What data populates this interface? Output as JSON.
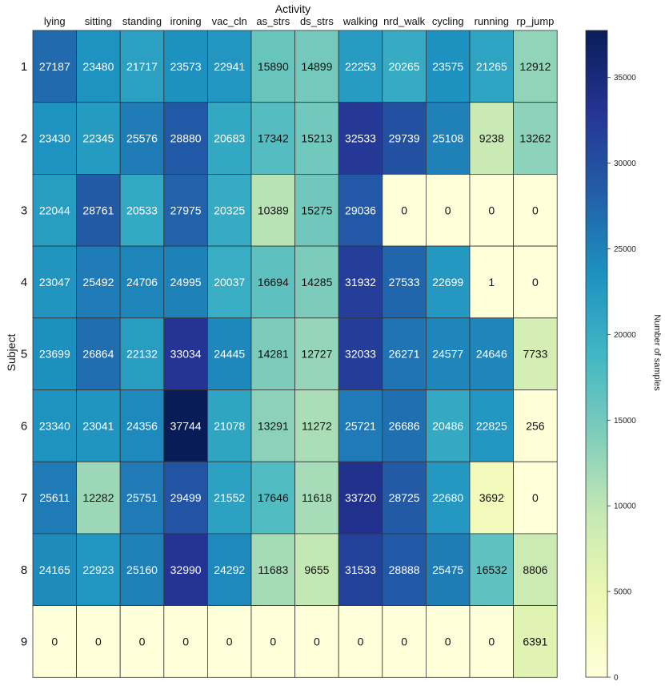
{
  "chart_data": {
    "type": "heatmap",
    "title": "",
    "xlabel": "Activity",
    "ylabel": "Subject",
    "x_categories": [
      "lying",
      "sitting",
      "standing",
      "ironing",
      "vac_cln",
      "as_strs",
      "ds_strs",
      "walking",
      "nrd_walk",
      "cycling",
      "running",
      "rp_jump"
    ],
    "y_categories": [
      "1",
      "2",
      "3",
      "4",
      "5",
      "6",
      "7",
      "8",
      "9"
    ],
    "values": [
      [
        27187,
        23480,
        21717,
        23573,
        22941,
        15890,
        14899,
        22253,
        20265,
        23575,
        21265,
        12912
      ],
      [
        23430,
        22345,
        25576,
        28880,
        20683,
        17342,
        15213,
        32533,
        29739,
        25108,
        9238,
        13262
      ],
      [
        22044,
        28761,
        20533,
        27975,
        20325,
        10389,
        15275,
        29036,
        0,
        0,
        0,
        0
      ],
      [
        23047,
        25492,
        24706,
        24995,
        20037,
        16694,
        14285,
        31932,
        27533,
        22699,
        1,
        0
      ],
      [
        23699,
        26864,
        22132,
        33034,
        24445,
        14281,
        12727,
        32033,
        26271,
        24577,
        24646,
        7733
      ],
      [
        23340,
        23041,
        24356,
        37744,
        21078,
        13291,
        11272,
        25721,
        26686,
        20486,
        22825,
        256
      ],
      [
        25611,
        12282,
        25751,
        29499,
        21552,
        17646,
        11618,
        33720,
        28725,
        22680,
        3692,
        0
      ],
      [
        24165,
        22923,
        25160,
        32990,
        24292,
        11683,
        9655,
        31533,
        28888,
        25475,
        16532,
        8806
      ],
      [
        0,
        0,
        0,
        0,
        0,
        0,
        0,
        0,
        0,
        0,
        0,
        6391
      ]
    ],
    "colormap": "YlGnBu",
    "vmin": 0,
    "vmax": 37744,
    "colorbar": {
      "label": "Number of samples",
      "ticks": [
        0,
        5000,
        10000,
        15000,
        20000,
        25000,
        30000,
        35000
      ]
    },
    "annotations_shown": true
  }
}
